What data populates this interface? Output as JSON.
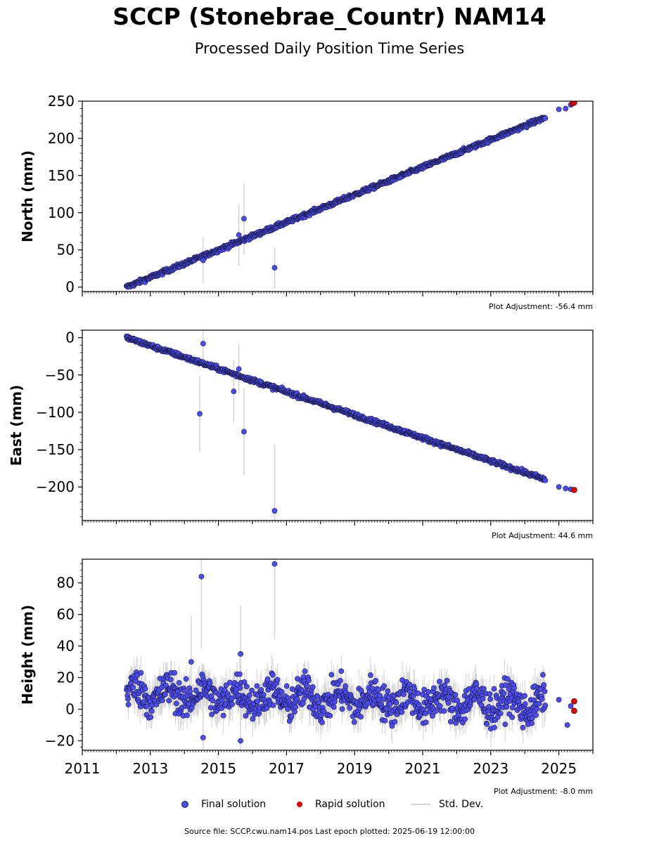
{
  "title": "SCCP (Stonebrae_Countr) NAM14",
  "subtitle": "Processed Daily Position Time Series",
  "legend": {
    "final": {
      "label": "Final solution",
      "color": "#4b4bf0"
    },
    "rapid": {
      "label": "Rapid solution",
      "color": "#e00000"
    },
    "stddev": {
      "label": "Std. Dev.",
      "color": "#d3d3d3"
    }
  },
  "source_note": "Source file: SCCP.cwu.nam14.pos  Last epoch plotted: 2025-06-19 12:00:00",
  "chart_data": [
    {
      "type": "scatter",
      "ylabel": "North (mm)",
      "adjustment": "Plot Adjustment: -56.4 mm",
      "xlim": [
        2011,
        2026
      ],
      "ylim": [
        -6,
        250
      ],
      "yticks": [
        0,
        50,
        100,
        150,
        200,
        250
      ],
      "series": [
        {
          "name": "Final solution",
          "trend": [
            [
              2012.3,
              0
            ],
            [
              2024.6,
              228
            ]
          ],
          "noise": 2,
          "gap_points": [
            [
              2025.0,
              239
            ],
            [
              2025.2,
              240
            ],
            [
              2025.35,
              245
            ]
          ],
          "outliers": [
            [
              2014.55,
              36
            ],
            [
              2015.75,
              92
            ],
            [
              2016.65,
              26
            ],
            [
              2015.6,
              70
            ]
          ]
        },
        {
          "name": "Rapid solution",
          "points": [
            [
              2025.4,
              247
            ],
            [
              2025.45,
              248
            ]
          ]
        }
      ]
    },
    {
      "type": "scatter",
      "ylabel": "East (mm)",
      "adjustment": "Plot Adjustment: 44.6 mm",
      "xlim": [
        2011,
        2026
      ],
      "ylim": [
        -245,
        10
      ],
      "yticks": [
        0,
        -50,
        -100,
        -150,
        -200
      ],
      "series": [
        {
          "name": "Final solution",
          "trend": [
            [
              2012.3,
              0
            ],
            [
              2024.6,
              -190
            ]
          ],
          "noise": 2,
          "gap_points": [
            [
              2025.0,
              -200
            ],
            [
              2025.2,
              -202
            ],
            [
              2025.35,
              -203
            ]
          ],
          "outliers": [
            [
              2014.45,
              -102
            ],
            [
              2014.55,
              -8
            ],
            [
              2015.45,
              -72
            ],
            [
              2015.75,
              -126
            ],
            [
              2016.65,
              -232
            ],
            [
              2015.6,
              -42
            ]
          ]
        },
        {
          "name": "Rapid solution",
          "points": [
            [
              2025.45,
              -204
            ]
          ]
        }
      ]
    },
    {
      "type": "scatter",
      "ylabel": "Height (mm)",
      "adjustment": "Plot Adjustment: -8.0 mm",
      "xlim": [
        2011,
        2026
      ],
      "ylim": [
        -26,
        95
      ],
      "yticks": [
        -20,
        0,
        20,
        40,
        60,
        80
      ],
      "xticks": [
        2011,
        2013,
        2015,
        2017,
        2019,
        2021,
        2023,
        2025
      ],
      "series": [
        {
          "name": "Final solution",
          "trend": [
            [
              2012.3,
              10
            ],
            [
              2024.6,
              3
            ]
          ],
          "noise": 8,
          "gap_points": [
            [
              2025.0,
              6
            ],
            [
              2025.25,
              -10
            ],
            [
              2025.35,
              2
            ]
          ],
          "outliers": [
            [
              2014.5,
              84
            ],
            [
              2014.55,
              -18
            ],
            [
              2015.65,
              -20
            ],
            [
              2016.65,
              92
            ],
            [
              2014.2,
              30
            ],
            [
              2015.65,
              35
            ]
          ]
        },
        {
          "name": "Rapid solution",
          "points": [
            [
              2025.45,
              5
            ],
            [
              2025.45,
              -1
            ]
          ]
        }
      ]
    }
  ]
}
